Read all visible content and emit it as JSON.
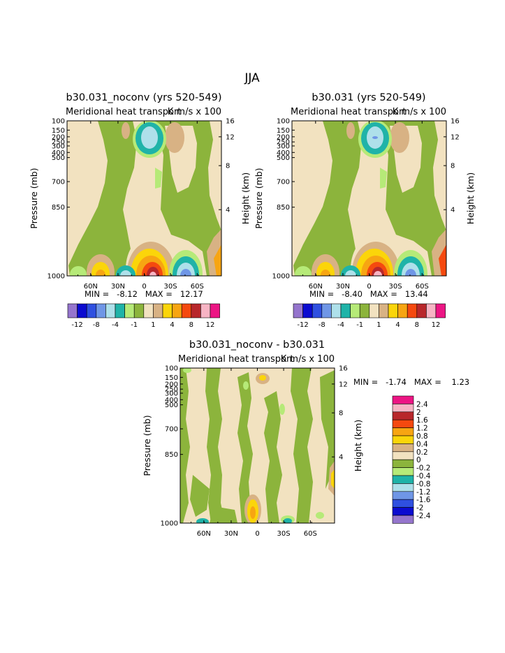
{
  "page_title": "JJA",
  "colors": {
    "diverging": [
      "#9575cd",
      "#0b0bd0",
      "#2f50e0",
      "#6f96e6",
      "#aee0ea",
      "#1fb3a8",
      "#b6ea78",
      "#8cb43c",
      "#f2e2c0",
      "#d8b284",
      "#fbd50a",
      "#f7a512",
      "#f5490f",
      "#b8272b",
      "#f7b4c4",
      "#ec1584"
    ],
    "bg": "#f2e2c0",
    "green": "#8cb43c",
    "light_green": "#b6ea78",
    "tan": "#d8b284",
    "yellow": "#fbd50a",
    "orange": "#f7a512",
    "red": "#f5490f",
    "darkred": "#b8272b",
    "pink": "#f7b4c4",
    "teal": "#1fb3a8",
    "cyan": "#aee0ea",
    "lblue": "#6f96e6",
    "blue": "#2f50e0"
  },
  "chart_data": [
    {
      "type": "contour",
      "title": "b30.031_noconv (yrs 520-549)",
      "subtitle": "Meridional heat transport",
      "units": "K m/s x 100",
      "xlabel": "",
      "ylabel": "Pressure (mb)",
      "y2label": "Height (km)",
      "x_ticks": [
        "60N",
        "30N",
        "0",
        "30S",
        "60S"
      ],
      "y_ticks": [
        "100",
        "150",
        "200",
        "250",
        "300",
        "400",
        "500",
        "700",
        "850",
        "1000"
      ],
      "y2_ticks": [
        "16",
        "12",
        "8",
        "4"
      ],
      "stats_text": "MIN =   -8.12   MAX =   12.17",
      "min": -8.12,
      "max": 12.17,
      "levels": [
        -12,
        -10,
        -8,
        -6,
        -4,
        -2,
        -1,
        -0.5,
        0.5,
        1,
        2,
        4,
        6,
        8,
        10,
        12
      ],
      "legend_labels": [
        "-12",
        "-8",
        "-4",
        "-1",
        "1",
        "4",
        "8",
        "12"
      ],
      "legend_placement": "bottom"
    },
    {
      "type": "contour",
      "title": "b30.031 (yrs 520-549)",
      "subtitle": "Meridional heat transport",
      "units": "K m/s x 100",
      "xlabel": "",
      "ylabel": "Pressure (mb)",
      "y2label": "Height (km)",
      "x_ticks": [
        "60N",
        "30N",
        "0",
        "30S",
        "60S"
      ],
      "y_ticks": [
        "100",
        "150",
        "200",
        "250",
        "300",
        "400",
        "500",
        "700",
        "850",
        "1000"
      ],
      "y2_ticks": [
        "16",
        "12",
        "8",
        "4"
      ],
      "stats_text": "MIN =   -8.40   MAX =   13.44",
      "min": -8.4,
      "max": 13.44,
      "levels": [
        -12,
        -10,
        -8,
        -6,
        -4,
        -2,
        -1,
        -0.5,
        0.5,
        1,
        2,
        4,
        6,
        8,
        10,
        12
      ],
      "legend_labels": [
        "-12",
        "-8",
        "-4",
        "-1",
        "1",
        "4",
        "8",
        "12"
      ],
      "legend_placement": "bottom"
    },
    {
      "type": "contour",
      "title": "b30.031_noconv - b30.031",
      "subtitle": "Meridional heat transport",
      "units": "K m/s x 100",
      "xlabel": "",
      "ylabel": "Pressure (mb)",
      "y2label": "Height (km)",
      "x_ticks": [
        "60N",
        "30N",
        "0",
        "30S",
        "60S"
      ],
      "y_ticks": [
        "100",
        "150",
        "200",
        "250",
        "300",
        "400",
        "500",
        "700",
        "850",
        "1000"
      ],
      "y2_ticks": [
        "16",
        "12",
        "8",
        "4"
      ],
      "stats_text": "MIN =   -1.74   MAX =    1.23",
      "min": -1.74,
      "max": 1.23,
      "levels": [
        2.4,
        2,
        1.6,
        1.2,
        0.8,
        0.4,
        0.2,
        0,
        -0.2,
        -0.4,
        -0.8,
        -1.2,
        -1.6,
        -2,
        -2.4
      ],
      "legend_labels": [
        "2.4",
        "2",
        "1.6",
        "1.2",
        "0.8",
        "0.4",
        "0.2",
        "0",
        "-0.2",
        "-0.4",
        "-0.8",
        "-1.2",
        "-1.6",
        "-2",
        "-2.4"
      ],
      "legend_placement": "right"
    }
  ]
}
